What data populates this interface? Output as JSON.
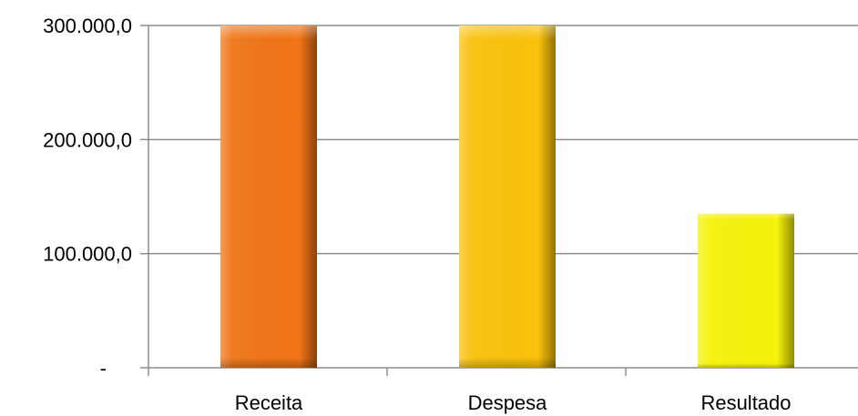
{
  "chart_data": {
    "type": "bar",
    "categories": [
      "Receita",
      "Despesa",
      "Resultado"
    ],
    "values": [
      300000,
      300000,
      135000
    ],
    "ylim": [
      0,
      300000
    ],
    "yticks": [
      0,
      100000,
      200000,
      300000
    ],
    "ytick_labels": [
      "-",
      "100.000,0",
      "200.000,0",
      "300.000,0"
    ],
    "grid": true,
    "legend": "none",
    "colors": {
      "Receita": "#f07516",
      "Despesa": "#f9c20c",
      "Resultado": "#f7f20a",
      "gridline": "#8c8c8c",
      "axis": "#8c8c8c"
    }
  }
}
